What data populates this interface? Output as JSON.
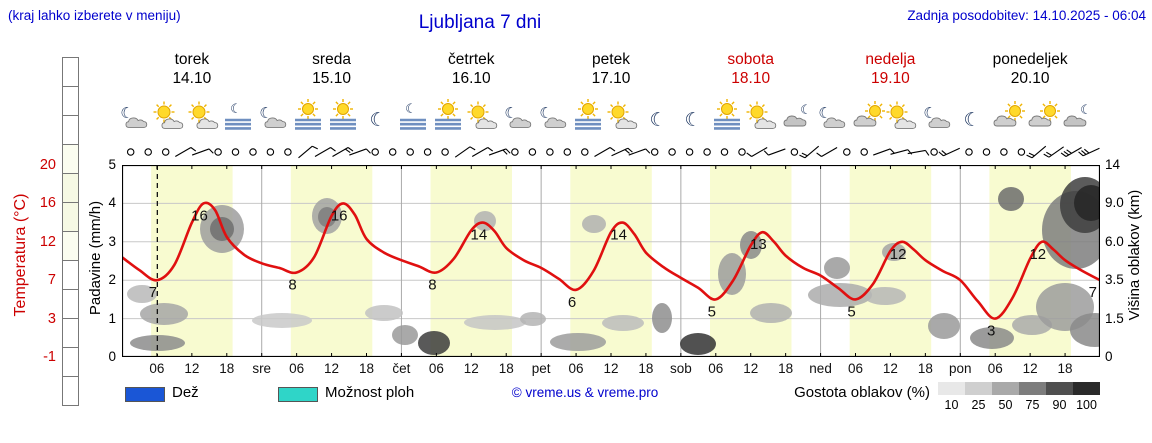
{
  "header": {
    "hint": "(kraj lahko izberete v meniju)",
    "title": "Ljubljana 7 dni",
    "updated": "Zadnja posodobitev: 14.10.2025 - 06:04"
  },
  "axes": {
    "temperature": {
      "label": "Temperatura (°C)",
      "color": "#cc0000",
      "ticks": [
        "20",
        "16",
        "12",
        "7",
        "3",
        "-1"
      ]
    },
    "precipitation": {
      "label": "Padavine (mm/h)",
      "color": "#000000",
      "ticks": [
        "5",
        "4",
        "3",
        "2",
        "1",
        "0"
      ]
    },
    "cloud_height": {
      "label": "Višina oblakov (km)",
      "color": "#000000",
      "ticks": [
        "14",
        "9.0",
        "6.0",
        "3.5",
        "1.5",
        "0"
      ]
    }
  },
  "legend": {
    "rain": "Dež",
    "rain_color": "#1a56d6",
    "showers": "Možnost ploh",
    "showers_color": "#2fd5c8",
    "copyright": "© vreme.us & vreme.pro",
    "cloud_density": "Gostota oblakov (%)",
    "cloud_scale_labels": [
      "10",
      "25",
      "50",
      "75",
      "90",
      "100"
    ],
    "cloud_scale_colors": [
      "#e8e8e8",
      "#cfcfcf",
      "#a9a9a9",
      "#7d7d7d",
      "#4f4f4f",
      "#2a2a2a"
    ]
  },
  "colorbar_cells": [
    "#ffffff",
    "#ffffff",
    "#ffffff",
    "#fbfdf0",
    "#f6f9e4",
    "#f6f9e4",
    "#fbfdf0",
    "#ffffff",
    "#ffffff",
    "#ffffff",
    "#ffffff",
    "#ffffff"
  ],
  "chart_data": {
    "type": "line",
    "title": "Ljubljana 7 dni",
    "days": [
      {
        "name": "torek",
        "date": "14.10",
        "color": "#000000"
      },
      {
        "name": "sreda",
        "date": "15.10",
        "color": "#000000"
      },
      {
        "name": "četrtek",
        "date": "16.10",
        "color": "#000000"
      },
      {
        "name": "petek",
        "date": "17.10",
        "color": "#000000"
      },
      {
        "name": "sobota",
        "date": "18.10",
        "color": "#cc0000"
      },
      {
        "name": "nedelja",
        "date": "19.10",
        "color": "#cc0000"
      },
      {
        "name": "ponedeljek",
        "date": "20.10",
        "color": "#000000"
      }
    ],
    "hours_total": 168,
    "current_time_hour": 6.07,
    "daylight": {
      "start_hour": 5,
      "end_hour": 19,
      "band_color": "#f8fbd0"
    },
    "x_ticks": [
      {
        "h": 6,
        "t": "06"
      },
      {
        "h": 12,
        "t": "12"
      },
      {
        "h": 18,
        "t": "18"
      },
      {
        "h": 24,
        "t": "sre"
      },
      {
        "h": 30,
        "t": "06"
      },
      {
        "h": 36,
        "t": "12"
      },
      {
        "h": 42,
        "t": "18"
      },
      {
        "h": 48,
        "t": "čet"
      },
      {
        "h": 54,
        "t": "06"
      },
      {
        "h": 60,
        "t": "12"
      },
      {
        "h": 66,
        "t": "18"
      },
      {
        "h": 72,
        "t": "pet"
      },
      {
        "h": 78,
        "t": "06"
      },
      {
        "h": 84,
        "t": "12"
      },
      {
        "h": 90,
        "t": "18"
      },
      {
        "h": 96,
        "t": "sob"
      },
      {
        "h": 102,
        "t": "06"
      },
      {
        "h": 108,
        "t": "12"
      },
      {
        "h": 114,
        "t": "18"
      },
      {
        "h": 120,
        "t": "ned"
      },
      {
        "h": 126,
        "t": "06"
      },
      {
        "h": 132,
        "t": "12"
      },
      {
        "h": 138,
        "t": "18"
      },
      {
        "h": 144,
        "t": "pon"
      },
      {
        "h": 150,
        "t": "06"
      },
      {
        "h": 156,
        "t": "12"
      },
      {
        "h": 162,
        "t": "18"
      }
    ],
    "temp_scale": [
      [
        -1,
        0
      ],
      [
        3,
        1
      ],
      [
        7,
        2
      ],
      [
        12,
        3
      ],
      [
        16,
        4
      ],
      [
        20,
        5
      ]
    ],
    "temperature": {
      "color": "#e01010",
      "unit": "°C",
      "points": [
        [
          0,
          10
        ],
        [
          3,
          8.3
        ],
        [
          6,
          7
        ],
        [
          9,
          9
        ],
        [
          12,
          14
        ],
        [
          14,
          16
        ],
        [
          16,
          15.3
        ],
        [
          18,
          12.5
        ],
        [
          21,
          10.3
        ],
        [
          24,
          9.2
        ],
        [
          27,
          8.6
        ],
        [
          30,
          8
        ],
        [
          33,
          10
        ],
        [
          36,
          14.7
        ],
        [
          38,
          16
        ],
        [
          40,
          14.8
        ],
        [
          42,
          12.3
        ],
        [
          45,
          10.6
        ],
        [
          48,
          9.6
        ],
        [
          51,
          8.8
        ],
        [
          54,
          8
        ],
        [
          57,
          9.8
        ],
        [
          60,
          13.2
        ],
        [
          62,
          14
        ],
        [
          64,
          13.1
        ],
        [
          66,
          11.2
        ],
        [
          69,
          9.6
        ],
        [
          72,
          8.6
        ],
        [
          75,
          7.2
        ],
        [
          78,
          6
        ],
        [
          81,
          8.2
        ],
        [
          84,
          13
        ],
        [
          86,
          14
        ],
        [
          88,
          12.8
        ],
        [
          90,
          10.6
        ],
        [
          93,
          8.7
        ],
        [
          96,
          7.3
        ],
        [
          99,
          6.2
        ],
        [
          102,
          5
        ],
        [
          105,
          7
        ],
        [
          108,
          11.5
        ],
        [
          110,
          13
        ],
        [
          112,
          12
        ],
        [
          114,
          10.2
        ],
        [
          117,
          8.6
        ],
        [
          120,
          7.6
        ],
        [
          123,
          6.2
        ],
        [
          126,
          5
        ],
        [
          129,
          6.6
        ],
        [
          132,
          10.8
        ],
        [
          134,
          12
        ],
        [
          136,
          11
        ],
        [
          138,
          9.6
        ],
        [
          141,
          8.2
        ],
        [
          144,
          7
        ],
        [
          147,
          4.8
        ],
        [
          150,
          3
        ],
        [
          153,
          5.2
        ],
        [
          156,
          9.8
        ],
        [
          158,
          12
        ],
        [
          160,
          11
        ],
        [
          162,
          9.6
        ],
        [
          165,
          8.2
        ],
        [
          168,
          7
        ]
      ]
    },
    "extrema_labels": [
      [
        6,
        7
      ],
      [
        14,
        16
      ],
      [
        30,
        8
      ],
      [
        38,
        16
      ],
      [
        54,
        8
      ],
      [
        62,
        14
      ],
      [
        78,
        6
      ],
      [
        86,
        14
      ],
      [
        102,
        5
      ],
      [
        110,
        13
      ],
      [
        126,
        5
      ],
      [
        134,
        12
      ],
      [
        150,
        3
      ],
      [
        158,
        12
      ],
      [
        168,
        7
      ]
    ],
    "icon_slot_hours": [
      2,
      8,
      14,
      20
    ],
    "icons": [
      [
        "mc",
        "sc",
        "sc",
        "fm"
      ],
      [
        "mc",
        "fs",
        "fs",
        "m"
      ],
      [
        "fm",
        "fs",
        "sc",
        "mc"
      ],
      [
        "mc",
        "fs",
        "sc",
        "m"
      ],
      [
        "m",
        "fs",
        "sc",
        "cm"
      ],
      [
        "mc",
        "cs",
        "sc",
        "mc"
      ],
      [
        "m",
        "cs",
        "cs",
        "cm"
      ]
    ],
    "wind": [
      "o",
      "o",
      "o",
      "60:1",
      "70:1",
      "o",
      "o",
      "o",
      "o",
      "o",
      "50:1",
      "60:1",
      "60:2",
      "70:1",
      "o",
      "o",
      "o",
      "o",
      "o",
      "55:1",
      "60:1",
      "70:2",
      "o",
      "o",
      "o",
      "o",
      "o",
      "60:1",
      "65:2",
      "70:1",
      "o",
      "o",
      "o",
      "o",
      "o",
      "o",
      "240:1",
      "250:1",
      "o",
      "230:2",
      "240:1",
      "o",
      "o",
      "70:1",
      "75:1",
      "80:1",
      "o",
      "245:2",
      "o",
      "o",
      "o",
      "o",
      "230:2",
      "235:2",
      "240:3",
      "245:3"
    ],
    "cloud_blobs": [
      [
        5,
        120,
        30,
        18,
        "#b8b8b8"
      ],
      [
        18,
        138,
        48,
        22,
        "#a6a6a6"
      ],
      [
        8,
        170,
        55,
        16,
        "#8c8c8c"
      ],
      [
        78,
        40,
        44,
        48,
        "#9e9e9e"
      ],
      [
        88,
        52,
        24,
        24,
        "#6e6e6e"
      ],
      [
        130,
        148,
        60,
        15,
        "#c9c9c9"
      ],
      [
        190,
        33,
        30,
        36,
        "#a2a2a2"
      ],
      [
        196,
        42,
        18,
        20,
        "#7e7e7e"
      ],
      [
        243,
        140,
        38,
        16,
        "#c2c2c2"
      ],
      [
        270,
        160,
        26,
        20,
        "#9a9a9a"
      ],
      [
        296,
        166,
        32,
        24,
        "#3c3c3c"
      ],
      [
        342,
        150,
        62,
        15,
        "#c6c6c6"
      ],
      [
        352,
        46,
        22,
        20,
        "#b2b2b2"
      ],
      [
        398,
        147,
        26,
        14,
        "#b4b4b4"
      ],
      [
        428,
        168,
        56,
        18,
        "#9c9c9c"
      ],
      [
        460,
        50,
        24,
        18,
        "#b0b0b0"
      ],
      [
        480,
        150,
        42,
        16,
        "#bcbcbc"
      ],
      [
        530,
        138,
        20,
        30,
        "#8e8e8e"
      ],
      [
        558,
        168,
        36,
        22,
        "#323232"
      ],
      [
        596,
        88,
        28,
        42,
        "#9c9c9c"
      ],
      [
        618,
        66,
        22,
        28,
        "#8a8a8a"
      ],
      [
        628,
        138,
        42,
        20,
        "#b0b0b0"
      ],
      [
        686,
        118,
        64,
        24,
        "#ababab"
      ],
      [
        702,
        92,
        26,
        22,
        "#9a9a9a"
      ],
      [
        742,
        122,
        42,
        18,
        "#b6b6b6"
      ],
      [
        760,
        78,
        24,
        18,
        "#a4a4a4"
      ],
      [
        806,
        148,
        32,
        26,
        "#9a9a9a"
      ],
      [
        848,
        162,
        44,
        22,
        "#8a8a8a"
      ],
      [
        876,
        22,
        26,
        24,
        "#6c6c6c"
      ],
      [
        890,
        150,
        40,
        20,
        "#aaaaaa"
      ],
      [
        914,
        118,
        58,
        48,
        "#9c9c9c"
      ],
      [
        920,
        26,
        68,
        78,
        "#7e7e7e"
      ],
      [
        938,
        12,
        50,
        56,
        "#3e3e3e"
      ],
      [
        952,
        20,
        34,
        36,
        "#262626"
      ],
      [
        948,
        148,
        50,
        34,
        "#8a8a8a"
      ]
    ]
  }
}
